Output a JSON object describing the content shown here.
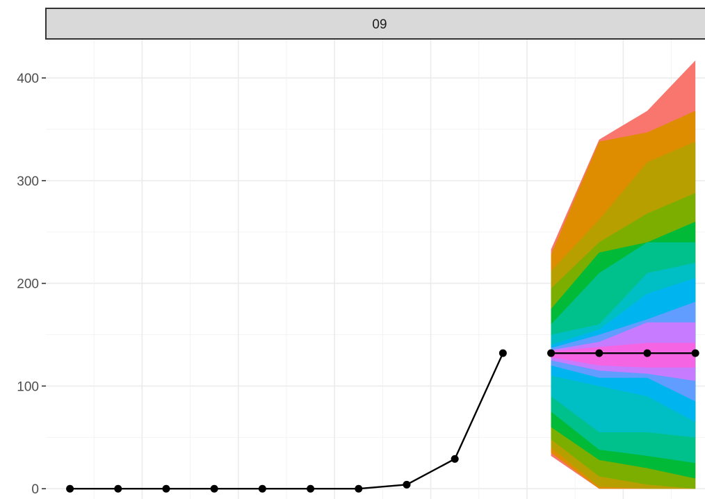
{
  "chart_data": {
    "type": "line",
    "facet_label": "09",
    "title": "",
    "xlabel": "",
    "ylabel": "",
    "ylim": [
      -10,
      438
    ],
    "xlim": [
      0.5,
      14.2
    ],
    "y_ticks": [
      0,
      100,
      200,
      300,
      400
    ],
    "grid": true,
    "series": [
      {
        "x": [
          1,
          2,
          3,
          4,
          5,
          6,
          7,
          8,
          9,
          10
        ],
        "values": [
          0,
          0,
          0,
          0,
          0,
          0,
          0,
          4,
          29,
          132
        ],
        "color": "#000000"
      },
      {
        "x": [
          11,
          12,
          13,
          14
        ],
        "values": [
          132,
          132,
          132,
          132
        ],
        "color": "#000000"
      }
    ],
    "forecast_fan": {
      "x": [
        11,
        12,
        13,
        14
      ],
      "bands": [
        {
          "color": "#F8766D",
          "lower": [
            32,
            0,
            0,
            0
          ],
          "upper": [
            233,
            340,
            368,
            417
          ]
        },
        {
          "color": "#DE8C00",
          "lower": [
            35,
            0,
            0,
            0
          ],
          "upper": [
            228,
            338,
            347,
            368
          ]
        },
        {
          "color": "#B79F00",
          "lower": [
            40,
            2,
            0,
            0
          ],
          "upper": [
            212,
            262,
            318,
            338
          ]
        },
        {
          "color": "#7CAE00",
          "lower": [
            48,
            12,
            4,
            0
          ],
          "upper": [
            195,
            240,
            268,
            288
          ]
        },
        {
          "color": "#00BA38",
          "lower": [
            60,
            28,
            20,
            10
          ],
          "upper": [
            175,
            230,
            240,
            260
          ]
        },
        {
          "color": "#00C08B",
          "lower": [
            75,
            38,
            32,
            25
          ],
          "upper": [
            160,
            210,
            240,
            240
          ]
        },
        {
          "color": "#00BFC4",
          "lower": [
            90,
            55,
            55,
            50
          ],
          "upper": [
            150,
            160,
            210,
            220
          ]
        },
        {
          "color": "#00B4F0",
          "lower": [
            110,
            100,
            90,
            65
          ],
          "upper": [
            140,
            155,
            190,
            205
          ]
        },
        {
          "color": "#619CFF",
          "lower": [
            120,
            108,
            108,
            85
          ],
          "upper": [
            137,
            150,
            165,
            182
          ]
        },
        {
          "color": "#C77CFF",
          "lower": [
            125,
            115,
            112,
            105
          ],
          "upper": [
            135,
            143,
            162,
            162
          ]
        },
        {
          "color": "#F564E3",
          "lower": [
            128,
            120,
            118,
            118
          ],
          "upper": [
            134,
            138,
            142,
            142
          ]
        }
      ]
    }
  }
}
